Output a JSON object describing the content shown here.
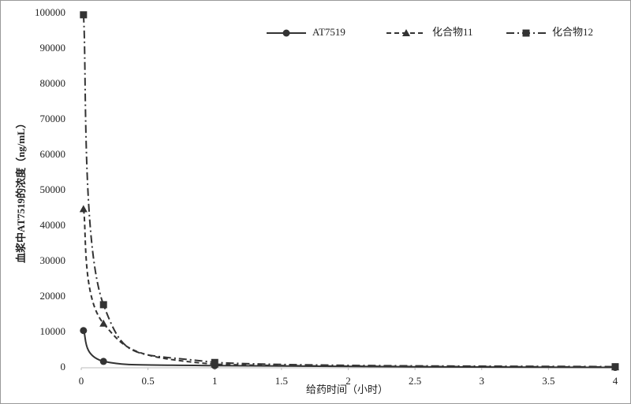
{
  "chart_data": {
    "type": "line",
    "x_label": "给药时间（小时）",
    "y_label": "血浆中AT7519的浓度（ng/mL）",
    "x": [
      0.0167,
      0.1667,
      1,
      4
    ],
    "series": [
      {
        "name": "AT7519",
        "color": "#333333",
        "dash": "none",
        "marker": "circle",
        "values": [
          10500,
          1800,
          600,
          100
        ]
      },
      {
        "name": "化合物11",
        "color": "#333333",
        "dash": "6 4",
        "marker": "triangle",
        "values": [
          44800,
          12500,
          1000,
          200
        ]
      },
      {
        "name": "化合物12",
        "color": "#333333",
        "dash": "10 4 2 4",
        "marker": "square",
        "values": [
          99600,
          17800,
          1500,
          300
        ]
      }
    ],
    "xlim": [
      0,
      4
    ],
    "xticks": [
      0,
      0.5,
      1,
      1.5,
      2,
      2.5,
      3,
      3.5,
      4
    ],
    "ylim": [
      0,
      100000
    ],
    "yticks": [
      0,
      10000,
      20000,
      30000,
      40000,
      50000,
      60000,
      70000,
      80000,
      90000,
      100000
    ],
    "grid": false,
    "legend": "top-right"
  }
}
